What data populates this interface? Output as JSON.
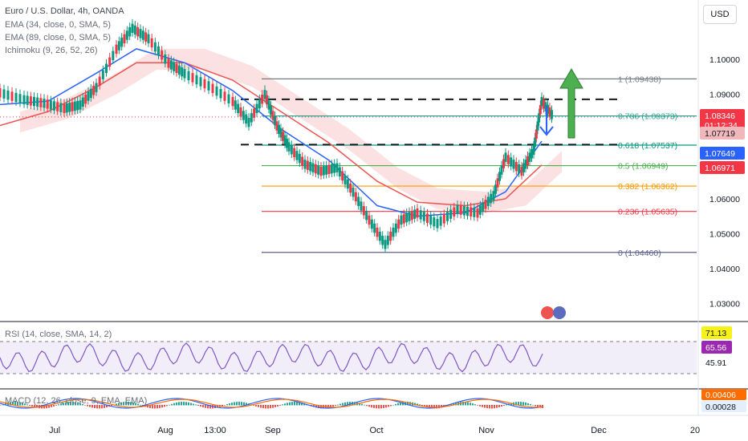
{
  "header": {
    "symbol_line": "Euro / U.S. Dollar, 4h, OANDA",
    "ema34": "EMA (34, close, 0, SMA, 5)",
    "ema89": "EMA (89, close, 0, SMA, 5)",
    "ichimoku": "Ichimoku (9, 26, 52, 26)"
  },
  "currency_button": "USD",
  "rsi_label": "RSI (14, close, SMA, 14, 2)",
  "macd_label": "MACD (12, 26, close, 9, EMA, EMA)",
  "chart_data": {
    "type": "line",
    "title": "Euro / U.S. Dollar, 4h, OANDA",
    "price_axis": {
      "ticks": [
        "1.10000",
        "1.09000",
        "1.08000",
        "1.07000",
        "1.06000",
        "1.05000",
        "1.04000",
        "1.03000"
      ],
      "range": [
        1.025,
        1.117
      ]
    },
    "time_axis": {
      "ticks": [
        "Jul",
        "Aug",
        "13:00",
        "Sep",
        "Oct",
        "Nov",
        "Dec",
        "20"
      ]
    },
    "price_series": {
      "name": "EUR/USD",
      "x": [
        0,
        30,
        55,
        80,
        100,
        120,
        145,
        165,
        185,
        210,
        230,
        260,
        290,
        310,
        330,
        345,
        360,
        380,
        400,
        420,
        440,
        460,
        480,
        500,
        520,
        545,
        570,
        595,
        615,
        630,
        650,
        665,
        675,
        690
      ],
      "y": [
        1.0905,
        1.0885,
        1.0875,
        1.086,
        1.087,
        1.092,
        1.103,
        1.109,
        1.106,
        1.099,
        1.096,
        1.0925,
        1.088,
        1.082,
        1.09,
        1.081,
        1.075,
        1.07,
        1.068,
        1.069,
        1.062,
        1.054,
        1.047,
        1.054,
        1.056,
        1.053,
        1.057,
        1.056,
        1.061,
        1.072,
        1.068,
        1.074,
        1.088,
        1.0835
      ]
    },
    "ema34": {
      "name": "EMA 34",
      "color": "#2962ff",
      "x": [
        0,
        60,
        120,
        170,
        230,
        290,
        350,
        410,
        470,
        520,
        580,
        630,
        675
      ],
      "y": [
        1.087,
        1.088,
        1.096,
        1.103,
        1.099,
        1.091,
        1.08,
        1.071,
        1.058,
        1.055,
        1.056,
        1.062,
        1.0765
      ]
    },
    "ema89": {
      "name": "EMA 89",
      "color": "#ef5350",
      "x": [
        0,
        60,
        120,
        170,
        230,
        290,
        350,
        410,
        470,
        520,
        580,
        630,
        675
      ],
      "y": [
        1.081,
        1.085,
        1.092,
        1.099,
        1.099,
        1.094,
        1.085,
        1.076,
        1.065,
        1.059,
        1.058,
        1.06,
        1.0697
      ]
    },
    "fibonacci": [
      {
        "level": "1",
        "price": 1.09438,
        "label": "1 (1.09438)",
        "color": "#787b86"
      },
      {
        "level": "0.786",
        "price": 1.08373,
        "label": "0.786 (1.08373)",
        "color": "#22ab94"
      },
      {
        "level": "0.618",
        "price": 1.07537,
        "label": "0.618 (1.07537)",
        "color": "#089981"
      },
      {
        "level": "0.5",
        "price": 1.06949,
        "label": "0.5 (1.06949)",
        "color": "#4caf50"
      },
      {
        "level": "0.382",
        "price": 1.06362,
        "label": "0.382 (1.06362)",
        "color": "#ff9800"
      },
      {
        "level": "0.236",
        "price": 1.05635,
        "label": "0.236 (1.05635)",
        "color": "#f23645"
      },
      {
        "level": "0",
        "price": 1.0446,
        "label": "0 (1.04460)",
        "color": "#5b5e8c"
      }
    ],
    "dashed_levels": [
      1.0885,
      1.0755
    ],
    "price_badges": [
      {
        "value": "1.08346",
        "sub": "01:12:34",
        "color": "#f23645"
      },
      {
        "value": "1.07719",
        "color": "#f0b8bb",
        "text_color": "#131722"
      },
      {
        "value": "1.07649",
        "color": "#2962ff"
      },
      {
        "value": "1.06971",
        "color": "#f23645"
      }
    ],
    "rsi": {
      "ticks_shown": [
        "71.13",
        "65.56",
        "45.91"
      ],
      "badge_colors": [
        "#f7f11a",
        "#9c27b0",
        "#ffffff"
      ],
      "upper": 70,
      "lower": 30
    },
    "macd": {
      "badges": [
        {
          "value": "0.00406",
          "color": "#ff6d00"
        },
        {
          "value": "0.00028",
          "color": "#e3effd",
          "text_color": "#131722"
        }
      ]
    }
  }
}
